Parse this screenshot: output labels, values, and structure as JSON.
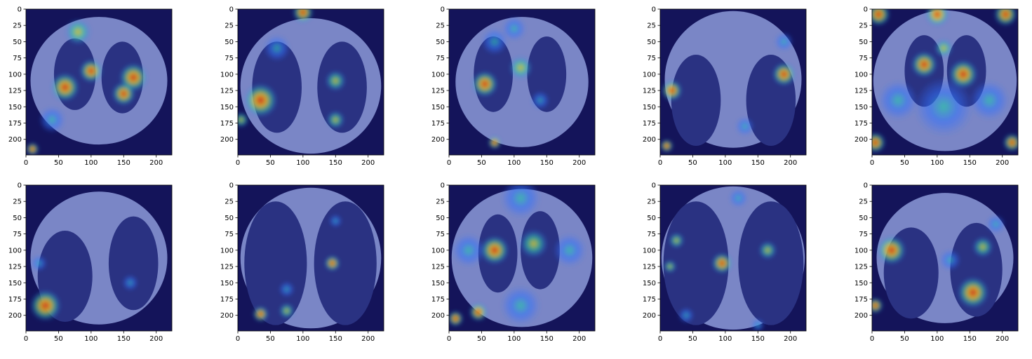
{
  "panels": [
    {
      "id": 1,
      "description_icon": "ct-gradcam-heatmap",
      "x_ticks": [
        "0",
        "50",
        "100",
        "150",
        "200"
      ],
      "y_ticks": [
        "0",
        "25",
        "50",
        "75",
        "100",
        "125",
        "150",
        "175",
        "200"
      ]
    },
    {
      "id": 2,
      "description_icon": "ct-gradcam-heatmap",
      "x_ticks": [
        "0",
        "50",
        "100",
        "150",
        "200"
      ],
      "y_ticks": [
        "0",
        "25",
        "50",
        "75",
        "100",
        "125",
        "150",
        "175",
        "200"
      ]
    },
    {
      "id": 3,
      "description_icon": "ct-gradcam-heatmap",
      "x_ticks": [
        "0",
        "50",
        "100",
        "150",
        "200"
      ],
      "y_ticks": [
        "0",
        "25",
        "50",
        "75",
        "100",
        "125",
        "150",
        "175",
        "200"
      ]
    },
    {
      "id": 4,
      "description_icon": "ct-gradcam-heatmap",
      "x_ticks": [
        "0",
        "50",
        "100",
        "150",
        "200"
      ],
      "y_ticks": [
        "0",
        "25",
        "50",
        "75",
        "100",
        "125",
        "150",
        "175",
        "200"
      ]
    },
    {
      "id": 5,
      "description_icon": "ct-gradcam-heatmap",
      "x_ticks": [
        "0",
        "50",
        "100",
        "150",
        "200"
      ],
      "y_ticks": [
        "0",
        "25",
        "50",
        "75",
        "100",
        "125",
        "150",
        "175",
        "200"
      ]
    },
    {
      "id": 6,
      "description_icon": "ct-gradcam-heatmap",
      "x_ticks": [
        "0",
        "50",
        "100",
        "150",
        "200"
      ],
      "y_ticks": [
        "0",
        "25",
        "50",
        "75",
        "100",
        "125",
        "150",
        "175",
        "200"
      ]
    },
    {
      "id": 7,
      "description_icon": "ct-gradcam-heatmap",
      "x_ticks": [
        "0",
        "50",
        "100",
        "150",
        "200"
      ],
      "y_ticks": [
        "0",
        "25",
        "50",
        "75",
        "100",
        "125",
        "150",
        "175",
        "200"
      ]
    },
    {
      "id": 8,
      "description_icon": "ct-gradcam-heatmap",
      "x_ticks": [
        "0",
        "50",
        "100",
        "150",
        "200"
      ],
      "y_ticks": [
        "0",
        "25",
        "50",
        "75",
        "100",
        "125",
        "150",
        "175",
        "200"
      ]
    },
    {
      "id": 9,
      "description_icon": "ct-gradcam-heatmap",
      "x_ticks": [
        "0",
        "50",
        "100",
        "150",
        "200"
      ],
      "y_ticks": [
        "0",
        "25",
        "50",
        "75",
        "100",
        "125",
        "150",
        "175",
        "200"
      ]
    },
    {
      "id": 10,
      "description_icon": "ct-gradcam-heatmap",
      "x_ticks": [
        "0",
        "50",
        "100",
        "150",
        "200"
      ],
      "y_ticks": [
        "0",
        "25",
        "50",
        "75",
        "100",
        "125",
        "150",
        "175",
        "200"
      ]
    }
  ],
  "colors": {
    "background_navy": "#14145a",
    "body_tissue": "#7a86c6",
    "lung_field": "#2a3282",
    "heat_hot": "#d01818",
    "heat_warm": "#f0c020",
    "heat_mid": "#30c8a0",
    "heat_cool": "#3070ff"
  }
}
